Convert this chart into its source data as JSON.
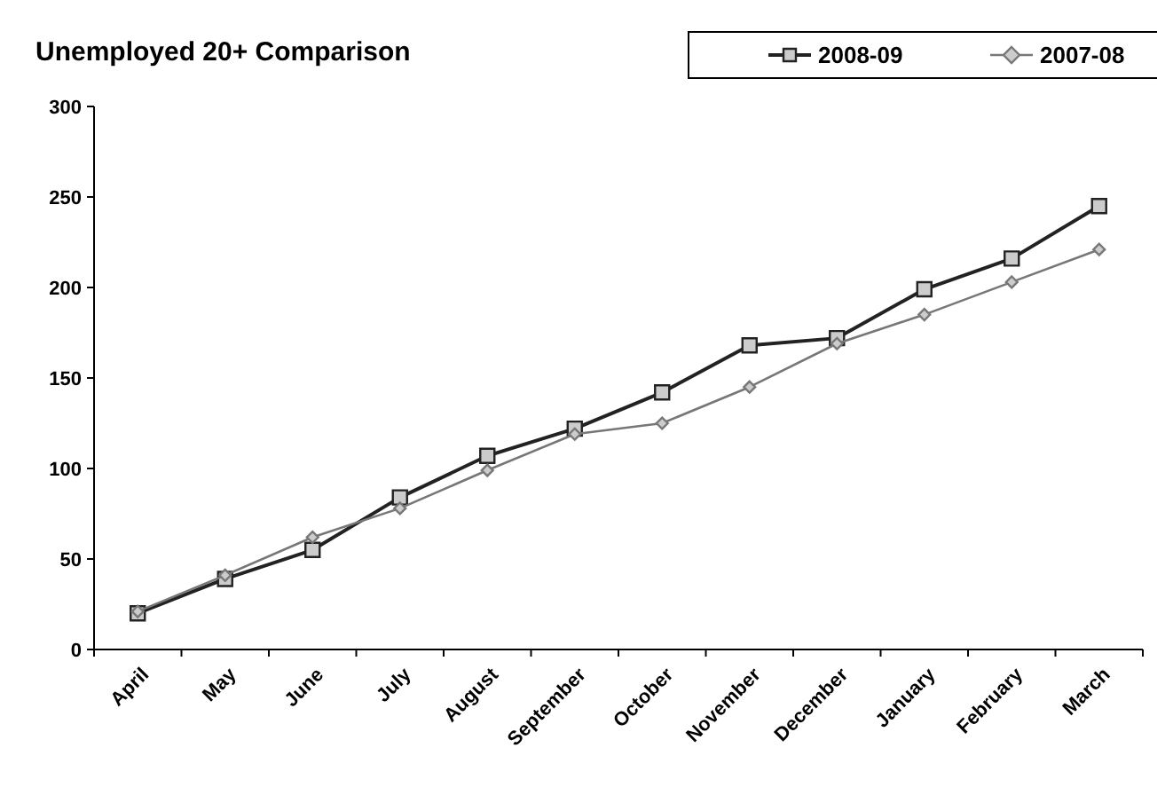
{
  "chart_data": {
    "type": "line",
    "title": "Unemployed 20+ Comparison",
    "categories": [
      "April",
      "May",
      "June",
      "July",
      "August",
      "September",
      "October",
      "November",
      "December",
      "January",
      "February",
      "March"
    ],
    "series": [
      {
        "name": "2008-09",
        "color": "#222222",
        "marker": "square",
        "values": [
          20,
          39,
          55,
          84,
          107,
          122,
          142,
          168,
          172,
          199,
          216,
          245
        ]
      },
      {
        "name": "2007-08",
        "color": "#777777",
        "marker": "diamond",
        "values": [
          21,
          41,
          62,
          78,
          99,
          119,
          125,
          145,
          169,
          185,
          203,
          221
        ]
      }
    ],
    "ylim": [
      0,
      300
    ],
    "yticks": [
      0,
      50,
      100,
      150,
      200,
      250,
      300
    ],
    "grid": false,
    "legend": "top right",
    "line_style": "solid"
  }
}
